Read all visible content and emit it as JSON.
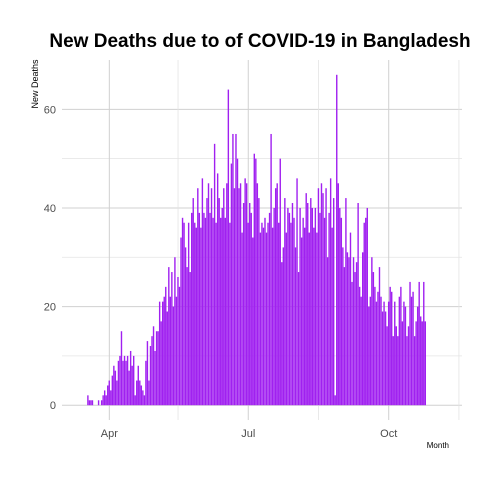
{
  "colors": {
    "bar": "#a020f0",
    "grid_major": "#d0d0d0",
    "grid_minor": "#e4e4e4",
    "tick_text": "#4d4d4d"
  },
  "chart_data": {
    "type": "bar",
    "title": "New Deaths due to of COVID-19 in Bangladesh",
    "xlabel": "Month",
    "ylabel": "New  Deaths",
    "ylim": [
      -3,
      70
    ],
    "yticks": [
      0,
      20,
      40,
      60
    ],
    "xticks": [
      "Apr",
      "Jul",
      "Oct"
    ],
    "grid": true,
    "x_start_date": "2020-03-18",
    "values": [
      2,
      1,
      1,
      1,
      0,
      0,
      0,
      1,
      0,
      1,
      2,
      3,
      2,
      4,
      5,
      3,
      6,
      8,
      7,
      5,
      9,
      10,
      15,
      9,
      10,
      9,
      10,
      7,
      11,
      8,
      10,
      2,
      5,
      8,
      5,
      4,
      3,
      2,
      9,
      13,
      5,
      12,
      14,
      16,
      11,
      15,
      15,
      21,
      17,
      21,
      22,
      24,
      19,
      28,
      22,
      27,
      20,
      30,
      22,
      26,
      24,
      34,
      38,
      37,
      32,
      28,
      37,
      27,
      39,
      42,
      37,
      36,
      44,
      39,
      36,
      46,
      39,
      38,
      42,
      45,
      39,
      44,
      38,
      53,
      37,
      47,
      42,
      38,
      40,
      44,
      38,
      45,
      64,
      37,
      49,
      55,
      44,
      55,
      50,
      44,
      45,
      35,
      41,
      46,
      45,
      37,
      41,
      39,
      34,
      51,
      50,
      45,
      42,
      35,
      37,
      36,
      38,
      35,
      37,
      39,
      55,
      36,
      40,
      44,
      45,
      37,
      50,
      29,
      32,
      42,
      35,
      40,
      39,
      37,
      41,
      38,
      32,
      46,
      27,
      40,
      34,
      38,
      36,
      43,
      41,
      35,
      42,
      40,
      36,
      40,
      35,
      44,
      39,
      45,
      43,
      38,
      44,
      30,
      39,
      46,
      36,
      42,
      2,
      67,
      45,
      40,
      38,
      32,
      28,
      42,
      31,
      30,
      35,
      25,
      30,
      27,
      29,
      41,
      24,
      22,
      31,
      37,
      38,
      40,
      20,
      22,
      30,
      27,
      24,
      21,
      23,
      28,
      22,
      19,
      21,
      19,
      16,
      21,
      24,
      23,
      14,
      21,
      16,
      14,
      22,
      24,
      17,
      21,
      20,
      14,
      16,
      25,
      22,
      23,
      14,
      17,
      20,
      25,
      18,
      17,
      25,
      17
    ],
    "series": [
      {
        "name": "",
        "color": "#a020f0"
      }
    ]
  }
}
